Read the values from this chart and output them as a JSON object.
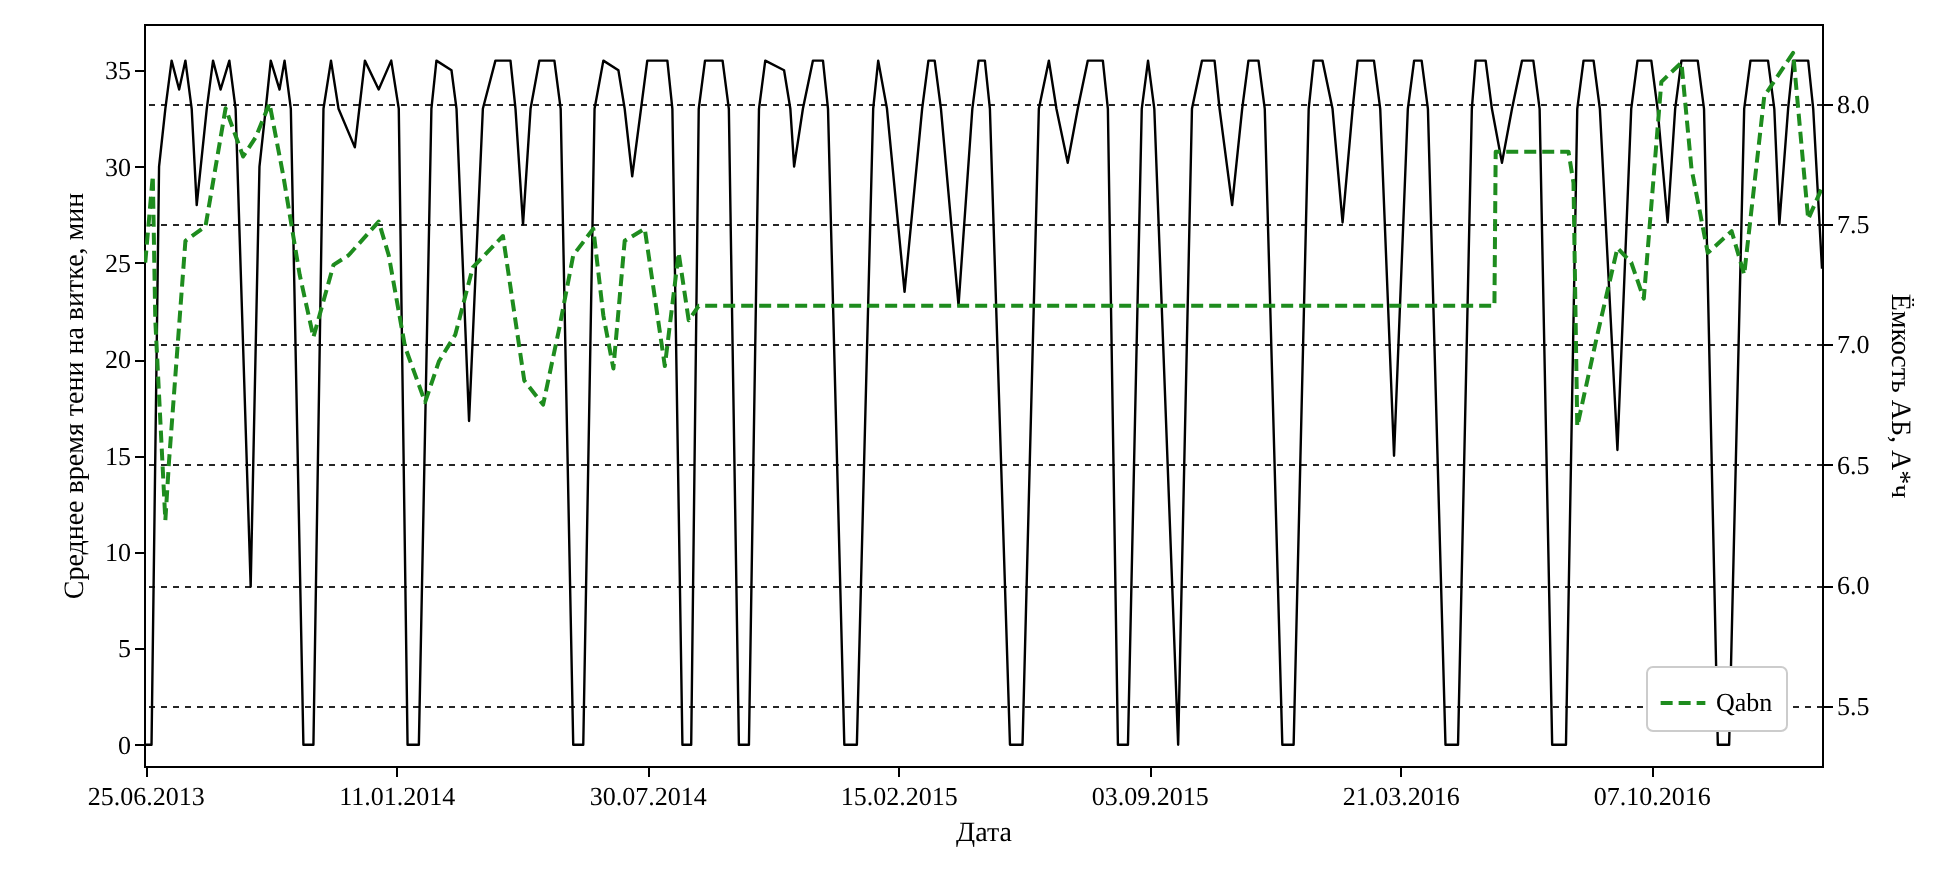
{
  "chart_data": {
    "type": "line",
    "xlabel": "Дата",
    "ylabel": "Среднее время тени на витке, мин",
    "y2label": "Ёмкость АБ, А*ч",
    "xlim": [
      "2013-06-24",
      "2017-02-20"
    ],
    "xticks": [
      {
        "value": "2013-06-25",
        "label": "25.06.2013"
      },
      {
        "value": "2014-01-11",
        "label": "11.01.2014"
      },
      {
        "value": "2014-07-30",
        "label": "30.07.2014"
      },
      {
        "value": "2015-02-15",
        "label": "15.02.2015"
      },
      {
        "value": "2015-09-03",
        "label": "03.09.2015"
      },
      {
        "value": "2016-03-21",
        "label": "21.03.2016"
      },
      {
        "value": "2016-10-07",
        "label": "07.10.2016"
      }
    ],
    "ylim": [
      -1.1,
      37.4
    ],
    "yticks": [
      0,
      5,
      10,
      15,
      20,
      25,
      30,
      35
    ],
    "y2lim": [
      5.25,
      8.33
    ],
    "y2ticks": [
      5.5,
      {
        "value": 6,
        "label": "6.0"
      },
      6.5,
      {
        "value": 7,
        "label": "7.0"
      },
      7.5,
      {
        "value": 8,
        "label": "8.0"
      }
    ],
    "grid": "y2",
    "legend": "bottom right",
    "series": [
      {
        "color": "#000000",
        "line_style": "solid",
        "x": [
          "2013-06-25",
          "2013-06-30",
          "2013-07-06",
          "2013-07-11",
          "2013-07-16",
          "2013-07-22",
          "2013-07-27",
          "2013-08-01",
          "2013-08-05",
          "2013-08-13",
          "2013-08-18",
          "2013-08-24",
          "2013-08-31",
          "2013-09-05",
          "2013-09-17",
          "2013-09-24",
          "2013-09-29",
          "2013-10-03",
          "2013-10-10",
          "2013-10-14",
          "2013-10-19",
          "2013-10-29",
          "2013-11-06",
          "2013-11-14",
          "2013-11-20",
          "2013-11-26",
          "2013-12-09",
          "2013-12-17",
          "2013-12-28",
          "2014-01-07",
          "2014-01-13",
          "2014-01-20",
          "2014-01-29",
          "2014-02-08",
          "2014-02-12",
          "2014-02-24",
          "2014-02-28",
          "2014-03-10",
          "2014-03-21",
          "2014-03-31",
          "2014-04-12",
          "2014-04-16",
          "2014-04-22",
          "2014-04-28",
          "2014-05-05",
          "2014-05-17",
          "2014-05-22",
          "2014-06-01",
          "2014-06-09",
          "2014-06-18",
          "2014-06-25",
          "2014-07-07",
          "2014-07-12",
          "2014-07-18",
          "2014-07-25",
          "2014-07-30",
          "2014-08-15",
          "2014-08-19",
          "2014-08-27",
          "2014-09-03",
          "2014-09-09",
          "2014-09-14",
          "2014-09-28",
          "2014-10-03",
          "2014-10-11",
          "2014-10-19",
          "2014-10-27",
          "2014-11-01",
          "2014-11-16",
          "2014-11-21",
          "2014-11-24",
          "2014-12-01",
          "2014-12-09",
          "2014-12-17",
          "2014-12-21",
          "2015-01-03",
          "2015-01-13",
          "2015-01-26",
          "2015-01-30",
          "2015-02-06",
          "2015-02-20",
          "2015-03-06",
          "2015-03-11",
          "2015-03-16",
          "2015-03-21",
          "2015-04-04",
          "2015-04-15",
          "2015-04-20",
          "2015-04-25",
          "2015-04-29",
          "2015-05-15",
          "2015-05-25",
          "2015-06-07",
          "2015-06-15",
          "2015-06-21",
          "2015-06-30",
          "2015-07-08",
          "2015-07-16",
          "2015-07-28",
          "2015-08-01",
          "2015-08-09",
          "2015-08-17",
          "2015-08-28",
          "2015-09-02",
          "2015-09-07",
          "2015-09-26",
          "2015-10-07",
          "2015-10-15",
          "2015-10-25",
          "2015-10-29",
          "2015-11-08",
          "2015-11-16",
          "2015-11-21",
          "2015-11-29",
          "2015-12-04",
          "2015-12-18",
          "2015-12-27",
          "2016-01-08",
          "2016-01-12",
          "2016-01-19",
          "2016-01-27",
          "2016-02-04",
          "2016-02-12",
          "2016-02-16",
          "2016-02-29",
          "2016-03-05",
          "2016-03-16",
          "2016-03-27",
          "2016-04-01",
          "2016-04-07",
          "2016-04-12",
          "2016-04-26",
          "2016-05-06",
          "2016-05-17",
          "2016-05-20",
          "2016-05-28",
          "2016-06-02",
          "2016-06-10",
          "2016-06-18",
          "2016-06-26",
          "2016-07-05",
          "2016-07-10",
          "2016-07-20",
          "2016-07-31",
          "2016-08-09",
          "2016-08-14",
          "2016-08-22",
          "2016-08-27",
          "2016-09-10",
          "2016-09-21",
          "2016-09-26",
          "2016-10-07",
          "2016-10-12",
          "2016-10-20",
          "2016-10-26",
          "2016-10-31",
          "2016-11-13",
          "2016-11-18",
          "2016-11-29",
          "2016-12-08",
          "2016-12-20",
          "2016-12-25",
          "2017-01-08",
          "2017-01-13",
          "2017-01-17",
          "2017-01-24",
          "2017-01-28",
          "2017-02-09",
          "2017-02-13",
          "2017-02-20"
        ],
        "values": [
          0,
          0,
          30,
          33,
          35.5,
          34,
          35.5,
          33,
          28,
          33,
          35.5,
          34,
          35.5,
          33,
          8.2,
          30,
          33,
          35.5,
          34,
          35.5,
          33,
          0,
          0,
          33,
          35.5,
          33,
          31,
          35.5,
          34,
          35.5,
          33,
          0,
          0,
          33,
          35.5,
          35,
          33,
          16.8,
          33,
          35.5,
          35.5,
          33,
          27,
          33,
          35.5,
          35.5,
          33,
          0,
          0,
          33,
          35.5,
          35,
          33,
          29.5,
          33,
          35.5,
          35.5,
          33,
          0,
          0,
          33,
          35.5,
          35.5,
          33,
          0,
          0,
          33,
          35.5,
          35,
          33,
          30,
          33,
          35.5,
          35.5,
          33,
          0,
          0,
          33,
          35.5,
          33,
          23.5,
          33,
          35.5,
          35.5,
          33,
          22.8,
          33,
          35.5,
          35.5,
          33,
          0,
          0,
          33,
          35.5,
          33,
          30.2,
          33,
          35.5,
          35.5,
          33,
          0,
          0,
          33,
          35.5,
          33,
          0,
          33,
          35.5,
          35.5,
          33,
          28,
          33,
          35.5,
          35.5,
          33,
          0,
          0,
          33,
          35.5,
          35.5,
          33,
          27.1,
          33,
          35.5,
          35.5,
          33,
          15,
          33,
          35.5,
          35.5,
          33,
          0,
          0,
          33,
          35.5,
          35.5,
          33,
          30.2,
          33,
          35.5,
          35.5,
          33,
          0,
          0,
          33,
          35.5,
          35.5,
          33,
          15.3,
          33,
          35.5,
          35.5,
          33,
          27.1,
          33,
          35.5,
          35.5,
          33,
          0,
          0,
          33,
          35.5,
          35.5,
          33,
          27,
          33,
          35.5,
          35.5,
          33,
          24.7
        ]
      },
      {
        "name": "Qabn",
        "color": "#1e8c1e",
        "line_style": "dashed",
        "axis": "y2",
        "x": [
          "2013-06-25",
          "2013-07-01",
          "2013-07-03",
          "2013-07-11",
          "2013-07-14",
          "2013-07-27",
          "2013-08-12",
          "2013-08-28",
          "2013-09-11",
          "2013-09-21",
          "2013-10-02",
          "2013-10-13",
          "2013-10-26",
          "2013-11-06",
          "2013-11-22",
          "2013-12-04",
          "2013-12-28",
          "2014-01-05",
          "2014-01-18",
          "2014-02-03",
          "2014-02-14",
          "2014-02-27",
          "2014-03-13",
          "2014-04-06",
          "2014-04-23",
          "2014-05-08",
          "2014-05-21",
          "2014-06-01",
          "2014-06-17",
          "2014-06-25",
          "2014-07-03",
          "2014-07-12",
          "2014-07-28",
          "2014-08-13",
          "2014-08-24",
          "2014-09-01",
          "2014-09-09",
          "2016-06-04",
          "2016-06-05",
          "2016-08-02",
          "2016-08-06",
          "2016-08-09",
          "2016-08-25",
          "2016-09-10",
          "2016-09-21",
          "2016-10-01",
          "2016-10-15",
          "2016-10-31",
          "2016-11-08",
          "2016-11-21",
          "2016-12-10",
          "2016-12-20",
          "2017-01-05",
          "2017-01-28",
          "2017-02-09",
          "2017-02-20"
        ],
        "values": [
          7.34,
          7.7,
          7.1,
          6.27,
          6.52,
          7.43,
          7.49,
          7.98,
          7.78,
          7.86,
          8.0,
          7.7,
          7.29,
          7.03,
          7.33,
          7.37,
          7.51,
          7.37,
          6.99,
          6.76,
          6.93,
          7.04,
          7.32,
          7.45,
          6.85,
          6.75,
          7.07,
          7.37,
          7.48,
          7.12,
          6.9,
          7.43,
          7.48,
          6.91,
          7.38,
          7.1,
          7.16,
          7.16,
          7.8,
          7.8,
          7.67,
          6.66,
          7.04,
          7.4,
          7.34,
          7.19,
          8.09,
          8.17,
          7.73,
          7.38,
          7.47,
          7.29,
          8.03,
          8.21,
          7.52,
          7.65
        ]
      }
    ]
  }
}
